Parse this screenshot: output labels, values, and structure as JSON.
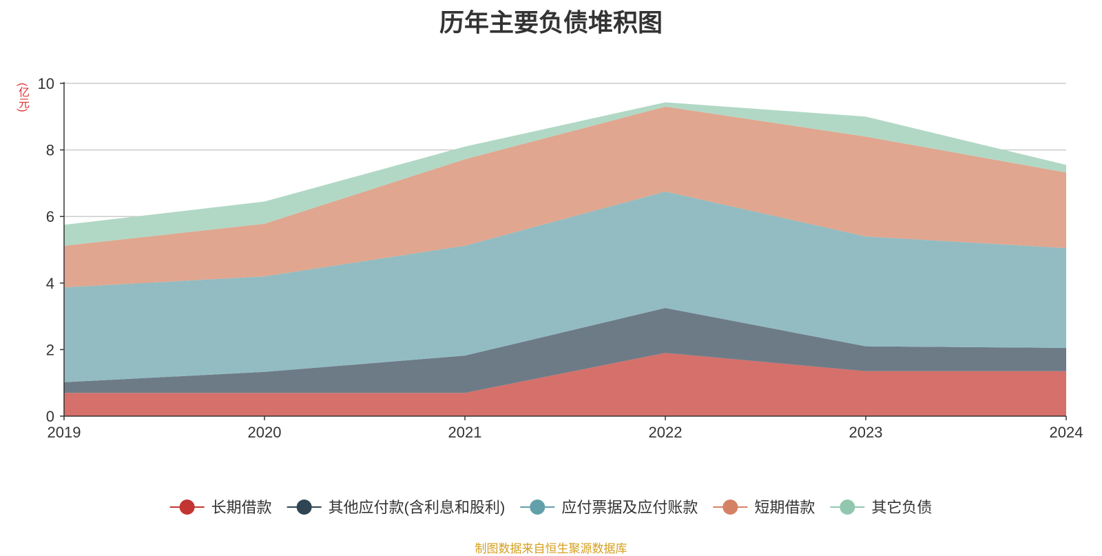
{
  "chart_data": {
    "type": "area",
    "stacked": true,
    "title": "历年主要负债堆积图",
    "unit_label": "(亿元)",
    "x": [
      "2019",
      "2020",
      "2021",
      "2022",
      "2023",
      "2024"
    ],
    "ylim": [
      0,
      10
    ],
    "yticks": [
      0,
      2,
      4,
      6,
      8,
      10
    ],
    "grid": true,
    "legend_position": "bottom",
    "series": [
      {
        "name": "长期借款",
        "color": "#c23531",
        "fill": "#d5706b",
        "values": [
          0.7,
          0.7,
          0.7,
          1.9,
          1.35,
          1.35
        ]
      },
      {
        "name": "其他应付款(含利息和股利)",
        "color": "#2f4554",
        "fill": "#6d7b87",
        "values": [
          0.32,
          0.63,
          1.12,
          1.35,
          0.75,
          0.7
        ]
      },
      {
        "name": "应付票据及应付账款",
        "color": "#61a0a8",
        "fill": "#92bcc2",
        "values": [
          2.85,
          2.87,
          3.3,
          3.5,
          3.3,
          3.0
        ]
      },
      {
        "name": "短期借款",
        "color": "#d48265",
        "fill": "#e0a68f",
        "values": [
          1.25,
          1.58,
          2.6,
          2.55,
          3.0,
          2.27
        ]
      },
      {
        "name": "其它负债",
        "color": "#91c7ae",
        "fill": "#b1d8c5",
        "values": [
          0.63,
          0.67,
          0.38,
          0.13,
          0.6,
          0.23
        ]
      }
    ]
  },
  "footer": "制图数据来自恒生聚源数据库"
}
